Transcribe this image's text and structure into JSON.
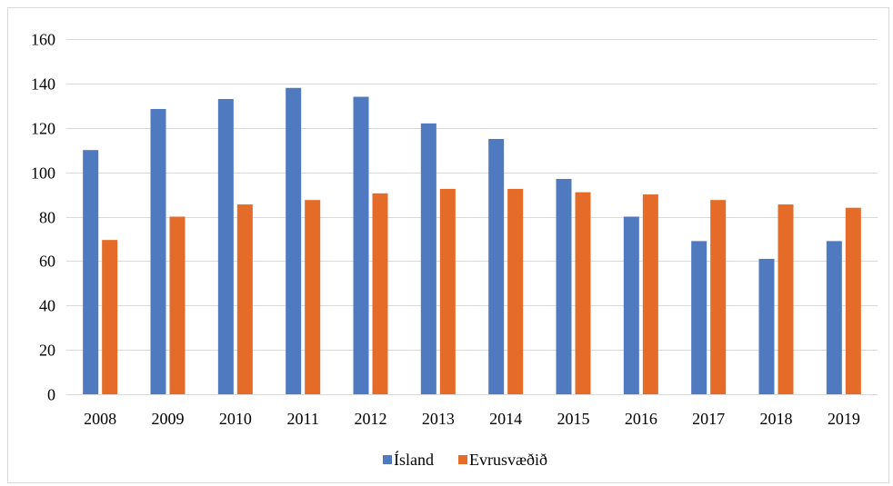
{
  "chart_data": {
    "type": "bar",
    "title": "",
    "xlabel": "",
    "ylabel": "",
    "categories": [
      "2008",
      "2009",
      "2010",
      "2011",
      "2012",
      "2013",
      "2014",
      "2015",
      "2016",
      "2017",
      "2018",
      "2019"
    ],
    "series": [
      {
        "name": "Ísland",
        "color": "#4f7ac0",
        "values": [
          110,
          128.5,
          133,
          138,
          134,
          122,
          115,
          97,
          80,
          69,
          61,
          69
        ]
      },
      {
        "name": "Evrusvæðið",
        "color": "#e46c28",
        "values": [
          69.5,
          80,
          85.5,
          87.5,
          90.5,
          92.5,
          92.5,
          91,
          90,
          87.5,
          85.5,
          84
        ]
      }
    ],
    "ylim": [
      0,
      160
    ],
    "yticks": [
      0,
      20,
      40,
      60,
      80,
      100,
      120,
      140,
      160
    ],
    "grid": true,
    "legend_position": "bottom"
  }
}
